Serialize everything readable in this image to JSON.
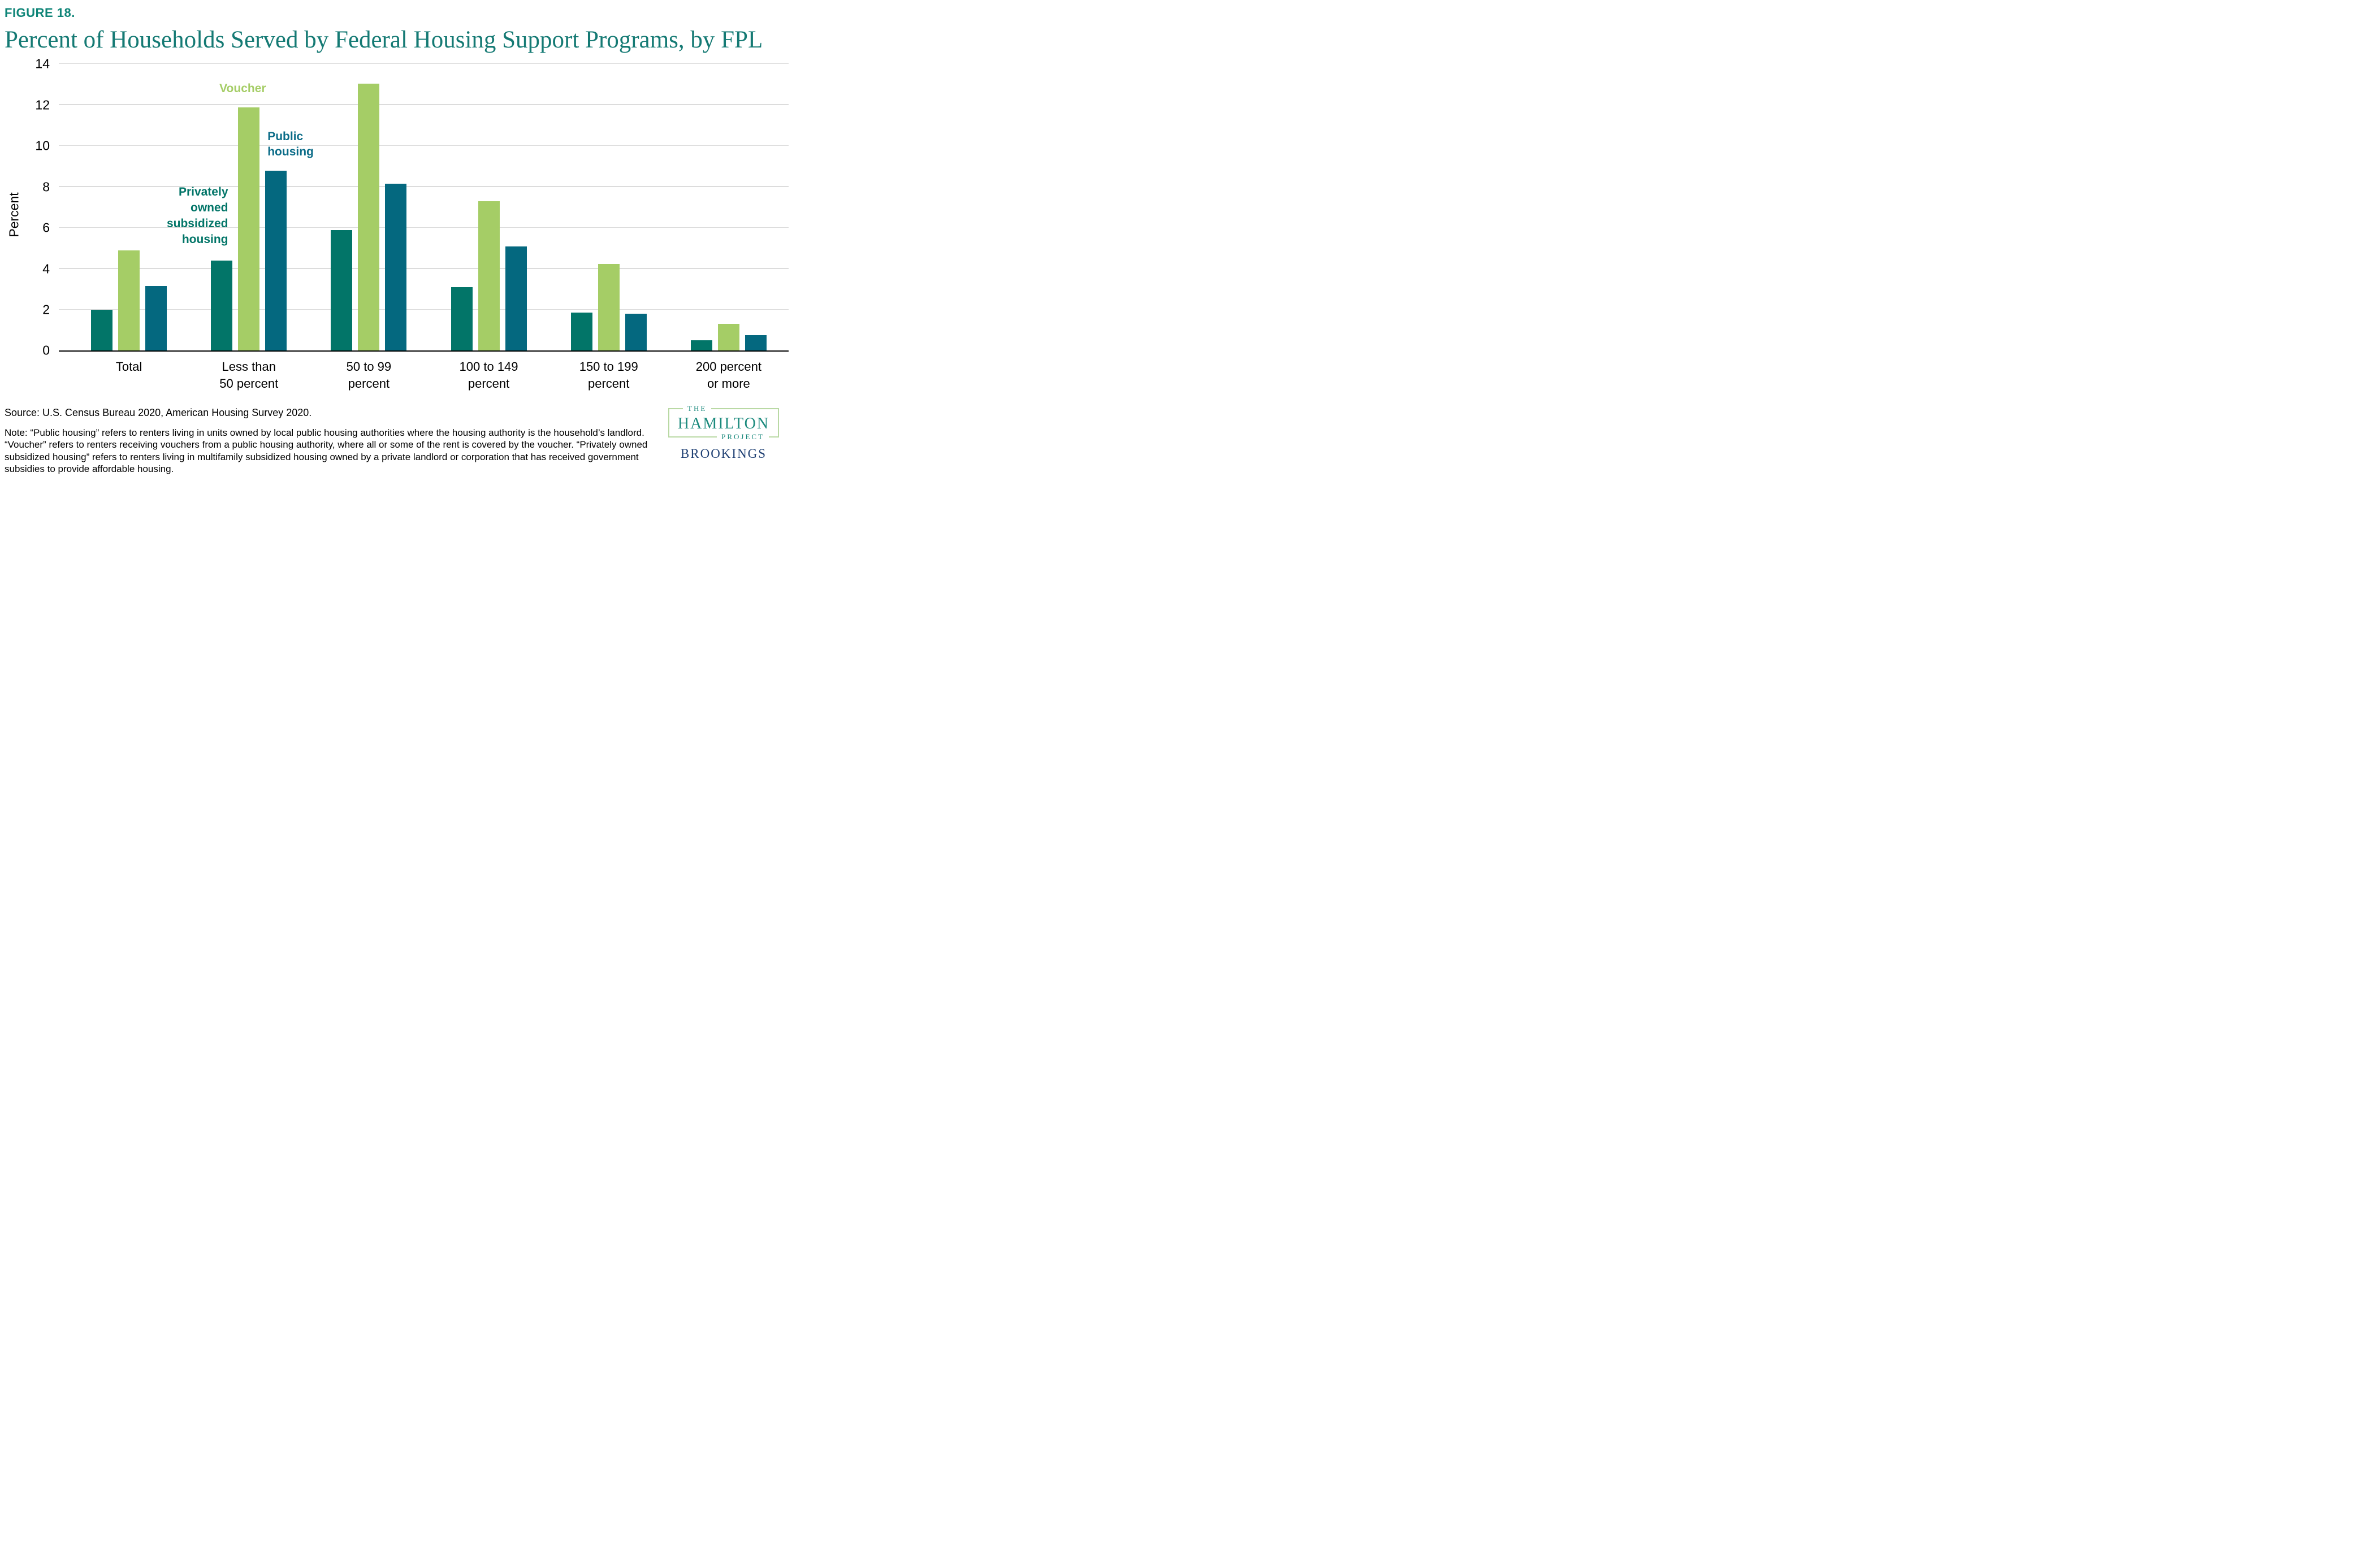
{
  "figure_label": "FIGURE 18.",
  "title": "Percent of Households Served by Federal Housing Support Programs, by FPL",
  "chart_data": {
    "type": "bar",
    "ylabel": "Percent",
    "ylim": [
      0,
      14
    ],
    "yticks": [
      0,
      2,
      4,
      6,
      8,
      10,
      12,
      14
    ],
    "grid": true,
    "legend_position": "in-plot text labels",
    "categories": [
      [
        "Total"
      ],
      [
        "Less than",
        "50 percent"
      ],
      [
        "50 to 99",
        "percent"
      ],
      [
        "100 to 149",
        "percent"
      ],
      [
        "150 to 199",
        "percent"
      ],
      [
        "200 percent",
        "or more"
      ]
    ],
    "series": [
      {
        "name": "Privately owned subsidized housing",
        "color": "#027568",
        "values": [
          2.0,
          4.4,
          5.9,
          3.1,
          1.85,
          0.5
        ]
      },
      {
        "name": "Voucher",
        "color": "#a5cd66",
        "values": [
          4.9,
          11.9,
          13.05,
          7.3,
          4.25,
          1.3
        ]
      },
      {
        "name": "Public housing",
        "color": "#04687f",
        "values": [
          3.15,
          8.8,
          8.15,
          5.1,
          1.8,
          0.75
        ]
      }
    ],
    "series_labels": [
      {
        "id": "voucher-series-label",
        "lines": [
          "Voucher"
        ],
        "color": "#a5cd66",
        "left_pct": 25.2,
        "top_pct": 5.8,
        "anchor": "center"
      },
      {
        "id": "public-housing-series-label",
        "lines": [
          "Public",
          "housing"
        ],
        "color": "#0b6c88",
        "left_pct": 28.6,
        "top_pct": 22.5,
        "anchor": "left"
      },
      {
        "id": "privately-owned-series-label",
        "lines": [
          "Privately",
          "owned",
          "subsidized",
          "housing"
        ],
        "color": "#027568",
        "left_pct": 23.2,
        "top_pct": 42.0,
        "anchor": "right"
      }
    ]
  },
  "source": "Source:  U.S. Census Bureau 2020, American Housing Survey 2020.",
  "note": "Note: “Public housing” refers to renters living in units owned by local public housing authorities where the housing authority is the household’s landlord. “Voucher” refers to renters receiving vouchers from a public housing authority, where all or some of the rent is covered by the voucher. “Privately owned subsidized housing” refers to renters living in multifamily subsidized housing owned by a private landlord or corporation that has received government subsidies to provide affordable housing.",
  "logo": {
    "the": "THE",
    "hamilton": "HAMILTON",
    "project": "PROJECT",
    "brookings": "BROOKINGS"
  }
}
